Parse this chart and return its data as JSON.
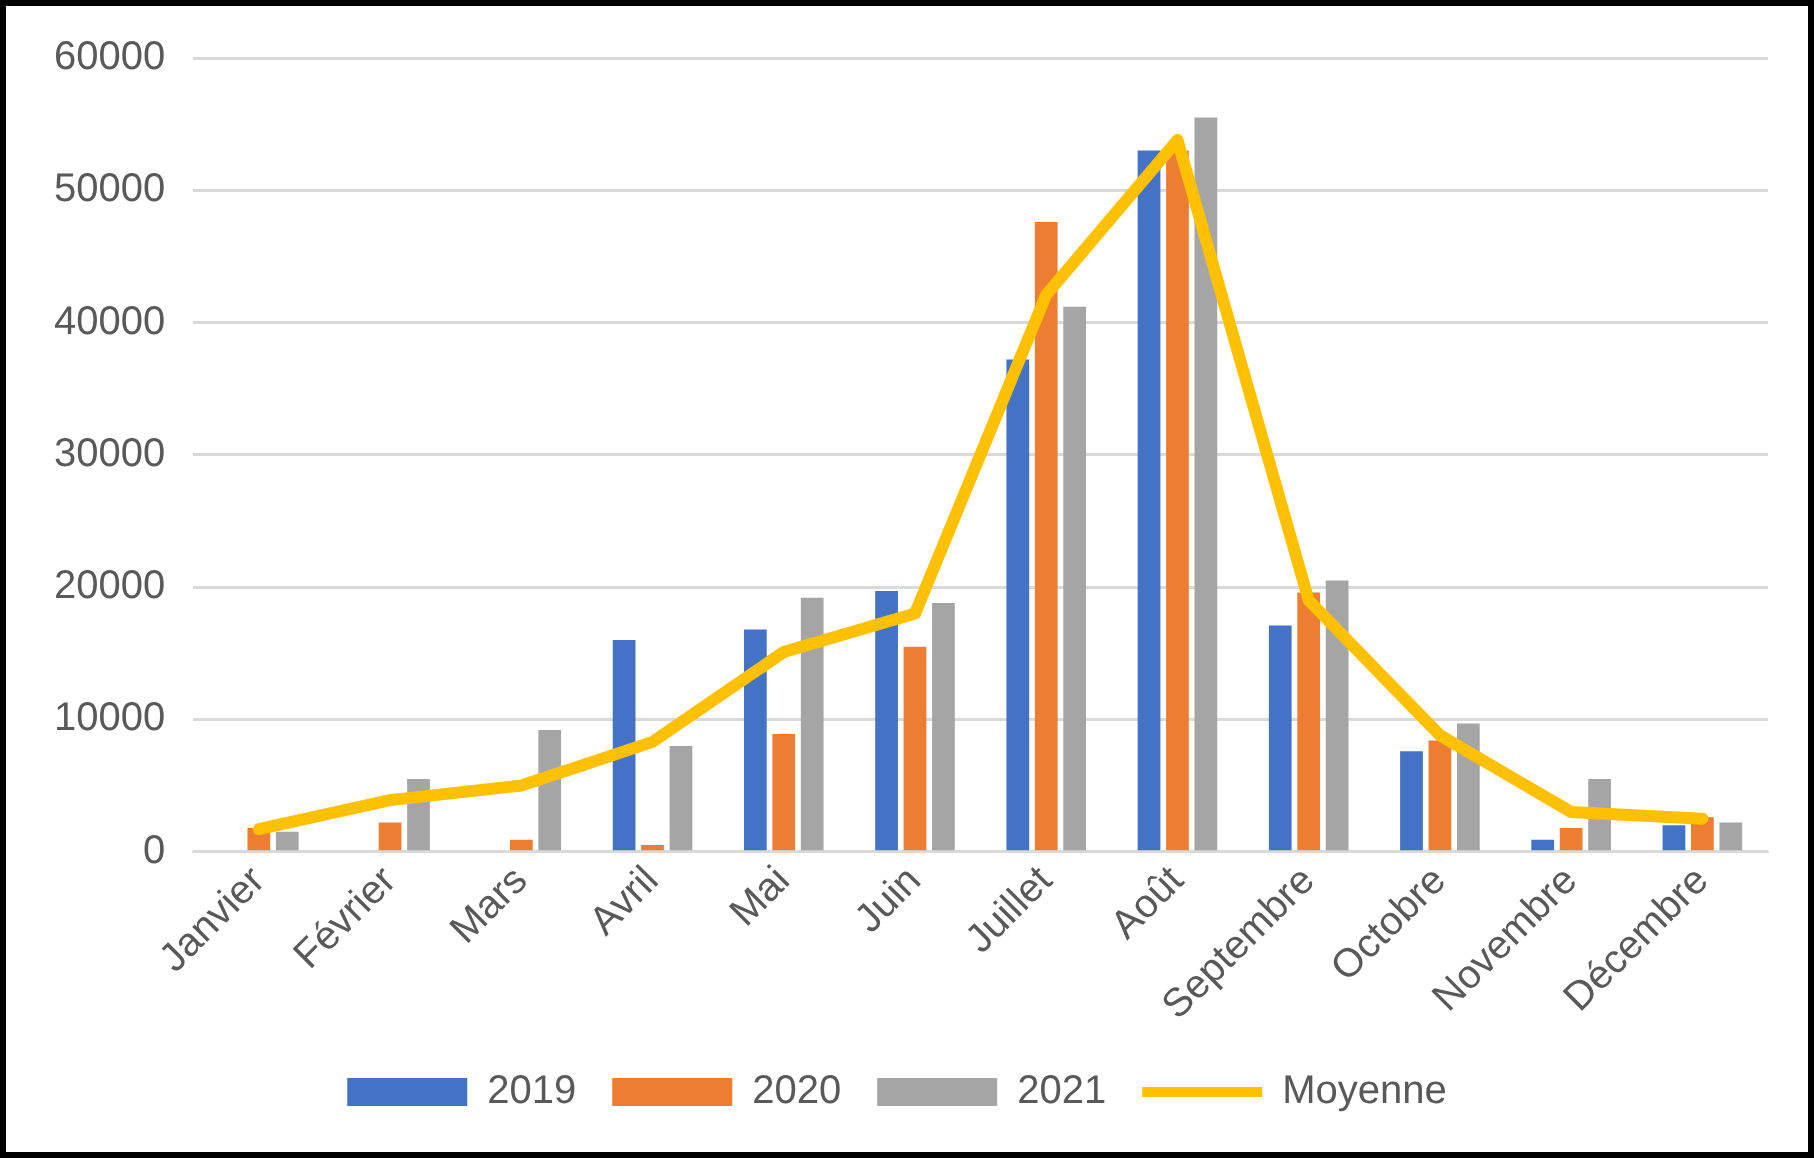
{
  "chart_data": {
    "type": "bar",
    "categories": [
      "Janvier",
      "Février",
      "Mars",
      "Avril",
      "Mai",
      "Juin",
      "Juillet",
      "Août",
      "Septembre",
      "Octobre",
      "Novembre",
      "Décembre"
    ],
    "series": [
      {
        "name": "2019",
        "color": "#4472c4",
        "values": [
          0,
          0,
          0,
          16000,
          16800,
          19700,
          37200,
          53000,
          17100,
          7600,
          900,
          2000
        ]
      },
      {
        "name": "2020",
        "color": "#ed7d31",
        "values": [
          1800,
          2200,
          900,
          500,
          8900,
          15500,
          47600,
          53000,
          19600,
          8400,
          1800,
          2600
        ]
      },
      {
        "name": "2021",
        "color": "#a5a5a5",
        "values": [
          1500,
          5500,
          9200,
          8000,
          19200,
          18800,
          41200,
          55500,
          20500,
          9700,
          5500,
          2200
        ]
      },
      {
        "name": "Moyenne",
        "type": "line",
        "color": "#ffc000",
        "values": [
          1700,
          3900,
          5000,
          8300,
          15100,
          18000,
          42100,
          53800,
          19000,
          8800,
          3000,
          2500
        ]
      }
    ],
    "ylim": [
      0,
      60000
    ],
    "yticks": [
      0,
      10000,
      20000,
      30000,
      40000,
      50000,
      60000
    ],
    "grid": "y",
    "legend": "bottom",
    "marker": "none"
  }
}
